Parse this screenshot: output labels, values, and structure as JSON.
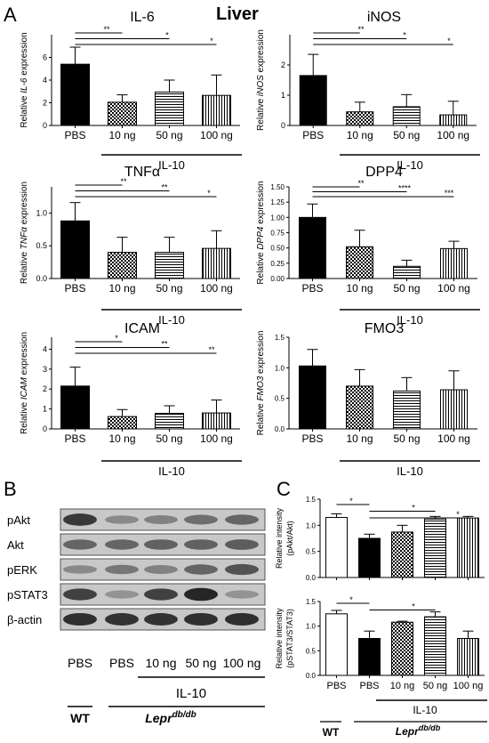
{
  "figure": {
    "panel_a_letter": "A",
    "panel_b_letter": "B",
    "panel_c_letter": "C",
    "liver_title": "Liver",
    "il10_label": "IL-10",
    "wt_label": "WT",
    "lepr_label": "Lepr",
    "lepr_superscript": "db/db"
  },
  "colors": {
    "black": "#000000",
    "white": "#ffffff",
    "line": "#000000"
  },
  "chart_data": [
    {
      "id": "il6",
      "type": "bar",
      "title": "IL-6",
      "ylabel_prefix": "Relative ",
      "ylabel_gene": "IL-6",
      "ylabel_suffix": " expression",
      "categories": [
        "PBS",
        "10 ng",
        "50 ng",
        "100 ng"
      ],
      "values": [
        5.4,
        2.05,
        2.95,
        2.65
      ],
      "errors": [
        1.5,
        0.65,
        1.05,
        1.8
      ],
      "patterns": [
        "solid",
        "check",
        "hlines",
        "vlines"
      ],
      "ylim": [
        0,
        8
      ],
      "yticks": [
        0,
        2,
        4,
        6
      ],
      "group_label": "IL-10",
      "group_span": [
        1,
        3
      ],
      "sig": [
        {
          "from": 0,
          "to": 1,
          "label": "**",
          "level": 0
        },
        {
          "from": 0,
          "to": 2,
          "label": "*",
          "level": 1
        },
        {
          "from": 0,
          "to": 3,
          "label": "*",
          "level": 2
        }
      ]
    },
    {
      "id": "inos",
      "type": "bar",
      "title": "iNOS",
      "ylabel_prefix": "Relative ",
      "ylabel_gene": "iNOS",
      "ylabel_suffix": " expression",
      "categories": [
        "PBS",
        "10 ng",
        "50 ng",
        "100 ng"
      ],
      "values": [
        1.65,
        0.45,
        0.62,
        0.35
      ],
      "errors": [
        0.7,
        0.32,
        0.4,
        0.45
      ],
      "patterns": [
        "solid",
        "check",
        "hlines",
        "vlines"
      ],
      "ylim": [
        0,
        3
      ],
      "yticks": [
        0,
        1,
        2
      ],
      "group_label": "IL-10",
      "group_span": [
        1,
        3
      ],
      "sig": [
        {
          "from": 0,
          "to": 1,
          "label": "**",
          "level": 0
        },
        {
          "from": 0,
          "to": 2,
          "label": "*",
          "level": 1
        },
        {
          "from": 0,
          "to": 3,
          "label": "*",
          "level": 2
        }
      ]
    },
    {
      "id": "tnfa",
      "type": "bar",
      "title": "TNFα",
      "ylabel_prefix": "Relative ",
      "ylabel_gene": "TNFα",
      "ylabel_suffix": " expression",
      "categories": [
        "PBS",
        "10 ng",
        "50 ng",
        "100 ng"
      ],
      "values": [
        0.88,
        0.4,
        0.4,
        0.46
      ],
      "errors": [
        0.28,
        0.23,
        0.23,
        0.27
      ],
      "patterns": [
        "solid",
        "check",
        "hlines",
        "vlines"
      ],
      "ylim": [
        0,
        1.4
      ],
      "yticks": [
        0.0,
        0.5,
        1.0
      ],
      "group_label": "IL-10",
      "group_span": [
        1,
        3
      ],
      "sig": [
        {
          "from": 0,
          "to": 1,
          "label": "**",
          "level": 0
        },
        {
          "from": 0,
          "to": 2,
          "label": "**",
          "level": 1
        },
        {
          "from": 0,
          "to": 3,
          "label": "*",
          "level": 2
        }
      ]
    },
    {
      "id": "dpp4",
      "type": "bar",
      "title": "DPP4",
      "ylabel_prefix": "Relative ",
      "ylabel_gene": "DPP4",
      "ylabel_suffix": " expression",
      "categories": [
        "PBS",
        "10 ng",
        "50 ng",
        "100 ng"
      ],
      "values": [
        1.0,
        0.52,
        0.2,
        0.49
      ],
      "errors": [
        0.22,
        0.27,
        0.1,
        0.12
      ],
      "patterns": [
        "solid",
        "check",
        "hlines",
        "vlines"
      ],
      "ylim": [
        0,
        1.5
      ],
      "yticks": [
        0.0,
        0.25,
        0.5,
        0.75,
        1.0,
        1.25,
        1.5
      ],
      "group_label": "IL-10",
      "group_span": [
        1,
        3
      ],
      "sig": [
        {
          "from": 0,
          "to": 1,
          "label": "**",
          "level": 0
        },
        {
          "from": 0,
          "to": 2,
          "label": "****",
          "level": 1
        },
        {
          "from": 0,
          "to": 3,
          "label": "***",
          "level": 2
        }
      ]
    },
    {
      "id": "icam",
      "type": "bar",
      "title": "ICAM",
      "ylabel_prefix": "Relative ",
      "ylabel_gene": "ICAM",
      "ylabel_suffix": " expression",
      "categories": [
        "PBS",
        "10 ng",
        "50 ng",
        "100 ng"
      ],
      "values": [
        2.15,
        0.62,
        0.78,
        0.8
      ],
      "errors": [
        0.95,
        0.35,
        0.38,
        0.65
      ],
      "patterns": [
        "solid",
        "check",
        "hlines",
        "vlines"
      ],
      "ylim": [
        0,
        4.6
      ],
      "yticks": [
        0,
        1,
        2,
        3,
        4
      ],
      "group_label": "IL-10",
      "group_span": [
        1,
        3
      ],
      "sig": [
        {
          "from": 0,
          "to": 1,
          "label": "*",
          "level": 0
        },
        {
          "from": 0,
          "to": 2,
          "label": "**",
          "level": 1
        },
        {
          "from": 0,
          "to": 3,
          "label": "**",
          "level": 2
        }
      ]
    },
    {
      "id": "fmo3",
      "type": "bar",
      "title": "FMO3",
      "ylabel_prefix": "Relative ",
      "ylabel_gene": "FMO3",
      "ylabel_suffix": " expression",
      "categories": [
        "PBS",
        "10 ng",
        "50 ng",
        "100 ng"
      ],
      "values": [
        1.03,
        0.7,
        0.62,
        0.64
      ],
      "errors": [
        0.27,
        0.27,
        0.22,
        0.31
      ],
      "patterns": [
        "solid",
        "check",
        "hlines",
        "vlines"
      ],
      "ylim": [
        0,
        1.5
      ],
      "yticks": [
        0.0,
        0.5,
        1.0,
        1.5
      ],
      "group_label": "IL-10",
      "group_span": [
        1,
        3
      ],
      "sig": []
    },
    {
      "id": "pakt",
      "type": "bar",
      "title": "",
      "ylabel_lines": [
        "Relative intensity",
        "(pAkt/Akt)"
      ],
      "categories": [
        "",
        "",
        "",
        "",
        ""
      ],
      "values": [
        1.15,
        0.75,
        0.87,
        1.12,
        1.14
      ],
      "errors": [
        0.07,
        0.08,
        0.13,
        0.05,
        0.03
      ],
      "patterns": [
        "white",
        "solid",
        "check",
        "hlines",
        "vlines"
      ],
      "ylim": [
        0,
        1.5
      ],
      "yticks": [
        0.0,
        0.5,
        1.0,
        1.5
      ],
      "sig": [
        {
          "from": 0,
          "to": 1,
          "label": "*",
          "level": 0
        },
        {
          "from": 1,
          "to": 3,
          "label": "*",
          "level": 1
        },
        {
          "from": 1,
          "to": 4,
          "label": "*",
          "level": 2
        }
      ]
    },
    {
      "id": "pstat3",
      "type": "bar",
      "title": "",
      "ylabel_lines": [
        "Relative intensity",
        "(pSTAT3/STAT3)"
      ],
      "categories": [
        "PBS",
        "PBS",
        "10 ng",
        "50 ng",
        "100 ng"
      ],
      "values": [
        1.25,
        0.75,
        1.08,
        1.19,
        0.75
      ],
      "errors": [
        0.07,
        0.15,
        0.02,
        0.1,
        0.15
      ],
      "patterns": [
        "white",
        "solid",
        "check",
        "hlines",
        "vlines"
      ],
      "ylim": [
        0,
        1.5
      ],
      "yticks": [
        0.0,
        0.5,
        1.0,
        1.5
      ],
      "group_label": "IL-10",
      "group_span": [
        2,
        4
      ],
      "sig": [
        {
          "from": 0,
          "to": 1,
          "label": "*",
          "level": 0
        },
        {
          "from": 1,
          "to": 3,
          "label": "*",
          "level": 1
        }
      ]
    }
  ],
  "blot": {
    "rows": [
      {
        "label": "pAkt",
        "intensity": [
          0.85,
          0.4,
          0.45,
          0.55,
          0.6
        ]
      },
      {
        "label": "Akt",
        "intensity": [
          0.6,
          0.6,
          0.62,
          0.62,
          0.65
        ]
      },
      {
        "label": "pERK",
        "intensity": [
          0.4,
          0.5,
          0.45,
          0.6,
          0.7
        ]
      },
      {
        "label": "pSTAT3",
        "intensity": [
          0.8,
          0.35,
          0.8,
          0.95,
          0.35
        ]
      },
      {
        "label": "β-actin",
        "intensity": [
          0.9,
          0.88,
          0.88,
          0.9,
          0.9
        ]
      }
    ],
    "lanes": [
      "PBS",
      "PBS",
      "10 ng",
      "50 ng",
      "100 ng"
    ]
  }
}
